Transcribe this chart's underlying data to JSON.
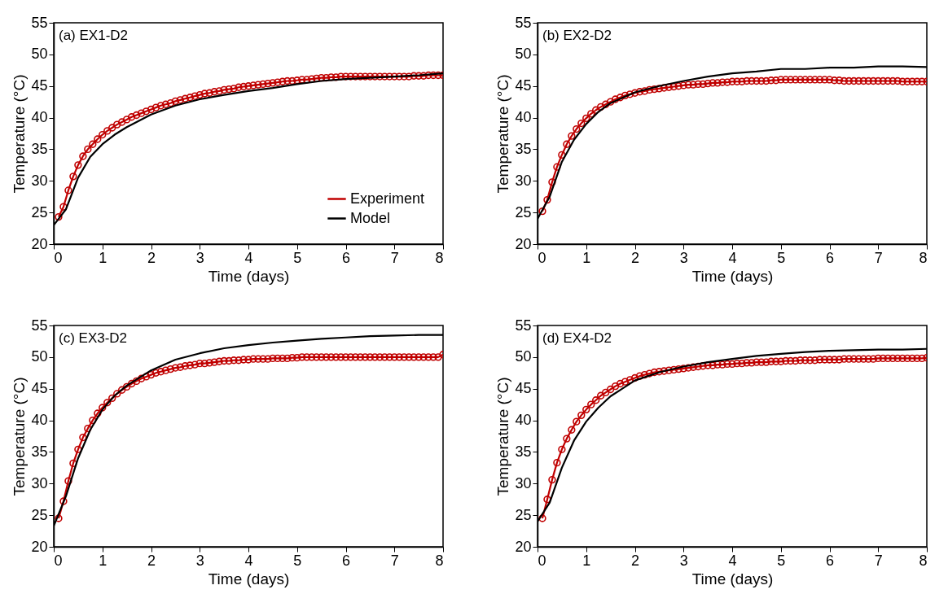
{
  "chart_data": [
    {
      "type": "line",
      "annotations": [
        "(a) EX1-D2"
      ],
      "xlabel": "Time (days)",
      "ylabel": "Temperature (°C)",
      "xlim": [
        0,
        8
      ],
      "xticks": [
        0,
        1,
        2,
        3,
        4,
        5,
        6,
        7,
        8
      ],
      "ylim": [
        20,
        55
      ],
      "yticks": [
        20,
        25,
        30,
        35,
        40,
        45,
        50,
        55
      ],
      "legend": "bottom right",
      "series": [
        {
          "name": "Experiment",
          "color": "#c00000",
          "marker": "circle",
          "x": [
            0.1,
            0.2,
            0.3,
            0.4,
            0.5,
            0.6,
            0.7,
            0.8,
            0.9,
            1.0,
            1.1,
            1.2,
            1.3,
            1.4,
            1.5,
            1.6,
            1.7,
            1.8,
            1.9,
            2.0,
            2.1,
            2.2,
            2.3,
            2.4,
            2.5,
            2.6,
            2.7,
            2.8,
            2.9,
            3.0,
            3.1,
            3.2,
            3.3,
            3.4,
            3.5,
            3.6,
            3.7,
            3.8,
            3.9,
            4.0,
            4.1,
            4.2,
            4.3,
            4.4,
            4.5,
            4.6,
            4.7,
            4.8,
            4.9,
            5.0,
            5.1,
            5.2,
            5.3,
            5.4,
            5.5,
            5.6,
            5.7,
            5.8,
            5.9,
            6.0,
            6.1,
            6.2,
            6.3,
            6.4,
            6.5,
            6.6,
            6.7,
            6.8,
            6.9,
            7.0,
            7.1,
            7.2,
            7.3,
            7.4,
            7.5,
            7.6,
            7.7,
            7.8,
            7.9,
            8.0
          ],
          "values": [
            24.3,
            25.9,
            28.5,
            30.7,
            32.5,
            33.9,
            35.0,
            35.8,
            36.6,
            37.3,
            37.9,
            38.4,
            38.9,
            39.3,
            39.7,
            40.1,
            40.4,
            40.7,
            41.0,
            41.3,
            41.6,
            41.9,
            42.1,
            42.3,
            42.6,
            42.8,
            43.0,
            43.2,
            43.4,
            43.6,
            43.8,
            43.9,
            44.1,
            44.2,
            44.4,
            44.5,
            44.6,
            44.8,
            44.9,
            45.0,
            45.1,
            45.2,
            45.3,
            45.4,
            45.5,
            45.6,
            45.7,
            45.8,
            45.8,
            45.9,
            46.0,
            46.0,
            46.1,
            46.2,
            46.3,
            46.3,
            46.4,
            46.4,
            46.5,
            46.5,
            46.5,
            46.5,
            46.5,
            46.5,
            46.5,
            46.5,
            46.5,
            46.5,
            46.5,
            46.5,
            46.5,
            46.5,
            46.5,
            46.6,
            46.6,
            46.6,
            46.7,
            46.7,
            46.7,
            46.7
          ]
        },
        {
          "name": "Model",
          "color": "#000000",
          "marker": "none",
          "x": [
            0,
            0.25,
            0.5,
            0.75,
            1,
            1.25,
            1.5,
            2,
            2.5,
            3,
            3.5,
            4,
            4.5,
            5,
            5.5,
            6,
            6.5,
            7,
            7.5,
            8
          ],
          "values": [
            23.0,
            25.5,
            30.5,
            33.8,
            35.8,
            37.3,
            38.5,
            40.5,
            41.9,
            42.9,
            43.6,
            44.2,
            44.7,
            45.3,
            45.8,
            46.1,
            46.3,
            46.5,
            46.7,
            47.0
          ]
        }
      ]
    },
    {
      "type": "line",
      "annotations": [
        "(b) EX2-D2"
      ],
      "xlabel": "Time (days)",
      "ylabel": "Temperature (°C)",
      "xlim": [
        0,
        8
      ],
      "xticks": [
        0,
        1,
        2,
        3,
        4,
        5,
        6,
        7,
        8
      ],
      "ylim": [
        20,
        55
      ],
      "yticks": [
        20,
        25,
        30,
        35,
        40,
        45,
        50,
        55
      ],
      "series": [
        {
          "color": "#c00000",
          "marker": "circle",
          "x": [
            0.1,
            0.2,
            0.3,
            0.4,
            0.5,
            0.6,
            0.7,
            0.8,
            0.9,
            1.0,
            1.1,
            1.2,
            1.3,
            1.4,
            1.5,
            1.6,
            1.7,
            1.8,
            1.9,
            2.0,
            2.1,
            2.2,
            2.3,
            2.4,
            2.5,
            2.6,
            2.7,
            2.8,
            2.9,
            3.0,
            3.1,
            3.2,
            3.3,
            3.4,
            3.5,
            3.6,
            3.7,
            3.8,
            3.9,
            4.0,
            4.1,
            4.2,
            4.3,
            4.4,
            4.5,
            4.6,
            4.7,
            4.8,
            4.9,
            5.0,
            5.1,
            5.2,
            5.3,
            5.4,
            5.5,
            5.6,
            5.7,
            5.8,
            5.9,
            6.0,
            6.1,
            6.2,
            6.3,
            6.4,
            6.5,
            6.6,
            6.7,
            6.8,
            6.9,
            7.0,
            7.1,
            7.2,
            7.3,
            7.4,
            7.5,
            7.6,
            7.7,
            7.8,
            7.9,
            8.0
          ],
          "values": [
            25.2,
            27.0,
            29.8,
            32.2,
            34.1,
            35.8,
            37.1,
            38.2,
            39.1,
            39.9,
            40.6,
            41.2,
            41.7,
            42.1,
            42.5,
            42.9,
            43.2,
            43.5,
            43.7,
            43.9,
            44.1,
            44.2,
            44.4,
            44.5,
            44.6,
            44.7,
            44.8,
            44.9,
            45.0,
            45.1,
            45.2,
            45.2,
            45.3,
            45.3,
            45.4,
            45.5,
            45.5,
            45.6,
            45.6,
            45.7,
            45.7,
            45.7,
            45.8,
            45.8,
            45.8,
            45.8,
            45.8,
            45.9,
            45.9,
            46.0,
            46.0,
            46.0,
            46.0,
            46.0,
            46.0,
            46.0,
            46.0,
            46.0,
            46.0,
            46.0,
            45.9,
            45.9,
            45.8,
            45.8,
            45.8,
            45.8,
            45.8,
            45.8,
            45.8,
            45.8,
            45.8,
            45.8,
            45.8,
            45.8,
            45.7,
            45.7,
            45.7,
            45.7,
            45.7,
            45.7
          ]
        },
        {
          "color": "#000000",
          "marker": "none",
          "x": [
            0,
            0.25,
            0.5,
            0.75,
            1,
            1.25,
            1.5,
            2,
            2.5,
            3,
            3.5,
            4,
            4.5,
            5,
            5.5,
            6,
            6.5,
            7,
            7.5,
            8
          ],
          "values": [
            24.0,
            27.5,
            33.0,
            36.5,
            39.0,
            40.9,
            42.3,
            44.0,
            45.0,
            45.8,
            46.5,
            47.0,
            47.3,
            47.7,
            47.7,
            47.9,
            47.9,
            48.1,
            48.1,
            48.0
          ]
        }
      ]
    },
    {
      "type": "line",
      "annotations": [
        "(c) EX3-D2"
      ],
      "xlabel": "Time (days)",
      "ylabel": "Temperature (°C)",
      "xlim": [
        0,
        8
      ],
      "xticks": [
        0,
        1,
        2,
        3,
        4,
        5,
        6,
        7,
        8
      ],
      "ylim": [
        20,
        55
      ],
      "yticks": [
        20,
        25,
        30,
        35,
        40,
        45,
        50,
        55
      ],
      "series": [
        {
          "color": "#c00000",
          "marker": "circle",
          "x": [
            0.1,
            0.2,
            0.3,
            0.4,
            0.5,
            0.6,
            0.7,
            0.8,
            0.9,
            1.0,
            1.1,
            1.2,
            1.3,
            1.4,
            1.5,
            1.6,
            1.7,
            1.8,
            1.9,
            2.0,
            2.1,
            2.2,
            2.3,
            2.4,
            2.5,
            2.6,
            2.7,
            2.8,
            2.9,
            3.0,
            3.1,
            3.2,
            3.3,
            3.4,
            3.5,
            3.6,
            3.7,
            3.8,
            3.9,
            4.0,
            4.1,
            4.2,
            4.3,
            4.4,
            4.5,
            4.6,
            4.7,
            4.8,
            4.9,
            5.0,
            5.1,
            5.2,
            5.3,
            5.4,
            5.5,
            5.6,
            5.7,
            5.8,
            5.9,
            6.0,
            6.1,
            6.2,
            6.3,
            6.4,
            6.5,
            6.6,
            6.7,
            6.8,
            6.9,
            7.0,
            7.1,
            7.2,
            7.3,
            7.4,
            7.5,
            7.6,
            7.7,
            7.8,
            7.9,
            8.0
          ],
          "values": [
            24.5,
            27.2,
            30.4,
            33.2,
            35.4,
            37.3,
            38.7,
            40.0,
            41.1,
            42.0,
            42.8,
            43.5,
            44.2,
            44.8,
            45.3,
            45.8,
            46.2,
            46.6,
            46.9,
            47.2,
            47.5,
            47.7,
            47.9,
            48.1,
            48.3,
            48.4,
            48.6,
            48.7,
            48.8,
            49.0,
            49.0,
            49.1,
            49.2,
            49.3,
            49.4,
            49.4,
            49.5,
            49.5,
            49.6,
            49.6,
            49.7,
            49.7,
            49.7,
            49.7,
            49.8,
            49.8,
            49.8,
            49.8,
            49.9,
            49.9,
            50.0,
            50.0,
            50.0,
            50.0,
            50.0,
            50.0,
            50.0,
            50.0,
            50.0,
            50.0,
            50.0,
            50.0,
            50.0,
            50.0,
            50.0,
            50.0,
            50.0,
            50.0,
            50.0,
            50.0,
            50.0,
            50.0,
            50.0,
            50.0,
            50.0,
            50.0,
            50.0,
            50.0,
            50.0,
            50.4
          ]
        },
        {
          "color": "#000000",
          "marker": "none",
          "x": [
            0,
            0.25,
            0.5,
            0.75,
            1,
            1.25,
            1.5,
            2,
            2.5,
            3,
            3.5,
            4,
            4.5,
            5,
            5.5,
            6,
            6.5,
            7,
            7.5,
            8
          ],
          "values": [
            23.3,
            28.0,
            34.0,
            38.5,
            41.7,
            43.9,
            45.5,
            47.9,
            49.6,
            50.6,
            51.4,
            51.9,
            52.3,
            52.6,
            52.9,
            53.1,
            53.3,
            53.4,
            53.5,
            53.5
          ]
        }
      ]
    },
    {
      "type": "line",
      "annotations": [
        "(d) EX4-D2"
      ],
      "xlabel": "Time (days)",
      "ylabel": "Temperature (°C)",
      "xlim": [
        0,
        8
      ],
      "xticks": [
        0,
        1,
        2,
        3,
        4,
        5,
        6,
        7,
        8
      ],
      "ylim": [
        20,
        55
      ],
      "yticks": [
        20,
        25,
        30,
        35,
        40,
        45,
        50,
        55
      ],
      "series": [
        {
          "color": "#c00000",
          "marker": "circle",
          "x": [
            0.1,
            0.2,
            0.3,
            0.4,
            0.5,
            0.6,
            0.7,
            0.8,
            0.9,
            1.0,
            1.1,
            1.2,
            1.3,
            1.4,
            1.5,
            1.6,
            1.7,
            1.8,
            1.9,
            2.0,
            2.1,
            2.2,
            2.3,
            2.4,
            2.5,
            2.6,
            2.7,
            2.8,
            2.9,
            3.0,
            3.1,
            3.2,
            3.3,
            3.4,
            3.5,
            3.6,
            3.7,
            3.8,
            3.9,
            4.0,
            4.1,
            4.2,
            4.3,
            4.4,
            4.5,
            4.6,
            4.7,
            4.8,
            4.9,
            5.0,
            5.1,
            5.2,
            5.3,
            5.4,
            5.5,
            5.6,
            5.7,
            5.8,
            5.9,
            6.0,
            6.1,
            6.2,
            6.3,
            6.4,
            6.5,
            6.6,
            6.7,
            6.8,
            6.9,
            7.0,
            7.1,
            7.2,
            7.3,
            7.4,
            7.5,
            7.6,
            7.7,
            7.8,
            7.9,
            8.0
          ],
          "values": [
            24.5,
            27.5,
            30.6,
            33.3,
            35.4,
            37.1,
            38.5,
            39.8,
            40.8,
            41.7,
            42.5,
            43.2,
            43.9,
            44.4,
            44.9,
            45.4,
            45.8,
            46.1,
            46.4,
            46.7,
            47.0,
            47.2,
            47.4,
            47.6,
            47.7,
            47.8,
            47.9,
            48.0,
            48.1,
            48.2,
            48.3,
            48.4,
            48.5,
            48.6,
            48.7,
            48.7,
            48.8,
            48.8,
            48.9,
            48.9,
            49.0,
            49.0,
            49.1,
            49.1,
            49.2,
            49.2,
            49.2,
            49.3,
            49.3,
            49.3,
            49.4,
            49.4,
            49.4,
            49.5,
            49.5,
            49.5,
            49.5,
            49.6,
            49.6,
            49.6,
            49.6,
            49.6,
            49.7,
            49.7,
            49.7,
            49.7,
            49.7,
            49.7,
            49.7,
            49.8,
            49.8,
            49.8,
            49.8,
            49.8,
            49.8,
            49.8,
            49.8,
            49.8,
            49.8,
            49.9
          ]
        },
        {
          "color": "#000000",
          "marker": "none",
          "x": [
            0,
            0.25,
            0.5,
            0.75,
            1,
            1.25,
            1.5,
            2,
            2.5,
            3,
            3.5,
            4,
            4.5,
            5,
            5.5,
            6,
            6.5,
            7,
            7.5,
            8
          ],
          "values": [
            24.0,
            27.0,
            32.5,
            36.8,
            39.8,
            42.0,
            43.8,
            46.3,
            47.6,
            48.5,
            49.2,
            49.7,
            50.2,
            50.5,
            50.8,
            51.0,
            51.1,
            51.2,
            51.2,
            51.3
          ]
        }
      ]
    }
  ]
}
